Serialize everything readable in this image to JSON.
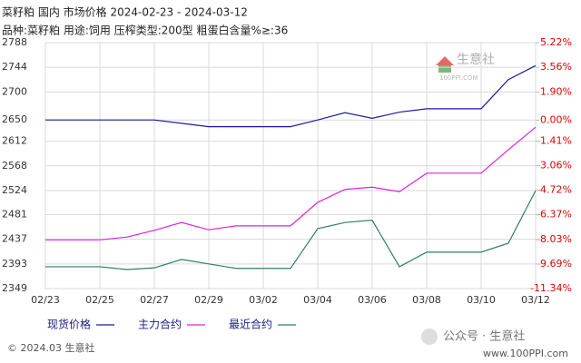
{
  "chart_data": {
    "type": "line",
    "title": "菜籽粕 国内 市场价格 2024-02-23 - 2024-03-12",
    "subtitle": "品种:菜籽粕 用途:饲用 压榨类型:200型 粗蛋白含量%≥:36",
    "categories": [
      "02/23",
      null,
      "02/25",
      null,
      "02/27",
      null,
      "02/29",
      null,
      "03/02",
      null,
      "03/04",
      null,
      "03/06",
      null,
      "03/08",
      null,
      "03/10",
      null,
      "03/12"
    ],
    "series": [
      {
        "name": "现货价格",
        "color": "#1a1aa6",
        "values": [
          2650,
          2650,
          2650,
          2650,
          2650,
          2644,
          2638,
          2638,
          2638,
          2638,
          2650,
          2663,
          2653,
          2664,
          2670,
          2670,
          2670,
          2722,
          2747
        ]
      },
      {
        "name": "主力合约",
        "color": "#e020e0",
        "values": [
          2436,
          2436,
          2436,
          2441,
          2453,
          2467,
          2454,
          2461,
          2461,
          2461,
          2503,
          2526,
          2530,
          2522,
          2555,
          2555,
          2555,
          2597,
          2637
        ]
      },
      {
        "name": "最近合约",
        "color": "#2f7f60",
        "values": [
          2388,
          2388,
          2388,
          2383,
          2386,
          2401,
          2393,
          2385,
          2385,
          2385,
          2456,
          2467,
          2471,
          2388,
          2414,
          2414,
          2414,
          2430,
          2524
        ]
      }
    ],
    "ylim": [
      2349,
      2788
    ],
    "yticks": [
      2788,
      2744,
      2700,
      2650,
      2612,
      2568,
      2524,
      2481,
      2437,
      2393,
      2349
    ],
    "y2lim": [
      -11.34,
      5.22
    ],
    "y2ticks": [
      {
        "value": 5.22,
        "label": "5.22%"
      },
      {
        "value": 3.56,
        "label": "3.56%"
      },
      {
        "value": 1.9,
        "label": "1.90%"
      },
      {
        "value": 0.0,
        "label": "0.00%"
      },
      {
        "value": -1.41,
        "label": "-1.41%"
      },
      {
        "value": -3.06,
        "label": "-3.06%"
      },
      {
        "value": -4.72,
        "label": "-4.72%"
      },
      {
        "value": -6.37,
        "label": "-6.37%"
      },
      {
        "value": -8.03,
        "label": "-8.03%"
      },
      {
        "value": -9.69,
        "label": "-9.69%"
      },
      {
        "value": -11.34,
        "label": "-11.34%"
      }
    ],
    "grid": true
  },
  "logo": {
    "name": "生意社",
    "url": "100PPI.COM"
  },
  "footer": "© 2024.03 生意社",
  "watermark": {
    "account": "公众号 · 生意社",
    "site": "www.100PPI.com"
  }
}
